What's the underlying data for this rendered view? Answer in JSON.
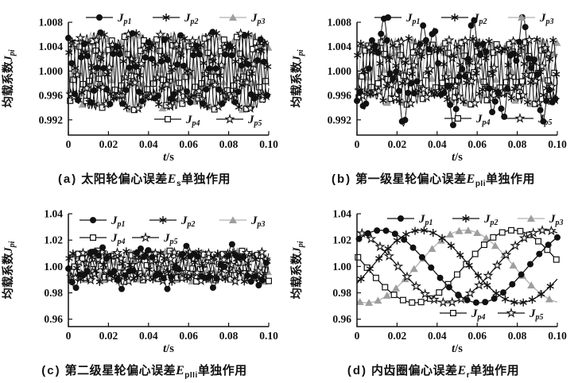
{
  "page": {
    "background": "#ffffff",
    "text_color": "#111111",
    "accent_gray": "#9e9e9e"
  },
  "chart_data": [
    {
      "id": "a",
      "type": "line",
      "caption": {
        "prefix": "(a)",
        "text": "太阳轮偏心误差",
        "var": "E",
        "sub": "s",
        "suffix": "单独作用"
      },
      "xlabel": {
        "var": "t",
        "unit": "/s"
      },
      "ylabel": {
        "text": "均载系数",
        "var": "J",
        "sub": "pi"
      },
      "xlim": [
        0,
        0.1
      ],
      "ylim": [
        0.9895,
        1.008
      ],
      "xticks": [
        "0",
        "0.02",
        "0.04",
        "0.06",
        "0.08",
        "0.10"
      ],
      "xtick_values": [
        0,
        0.02,
        0.04,
        0.06,
        0.08,
        0.1
      ],
      "yticks": [
        "0.992",
        "0.996",
        "1.000",
        "1.004",
        "1.008"
      ],
      "ytick_values": [
        0.992,
        0.996,
        1.0,
        1.004,
        1.008
      ],
      "grid": false,
      "line_step": 0.0004,
      "line_width": 1.0,
      "legends": [
        {
          "x": 108,
          "y": 22,
          "gap": 84,
          "items": [
            0,
            1,
            2
          ]
        },
        {
          "x": 194,
          "y": 150,
          "gap": 78,
          "items": [
            3,
            4
          ]
        }
      ],
      "series": [
        {
          "name": "J",
          "sub": "p1",
          "marker": "circle",
          "color": "#111111",
          "line_color": "#111111",
          "zorder": 5,
          "mean": 1,
          "approx_range": [
            0.9936,
            1.0064
          ],
          "components": [
            {
              "amp": 0.0052,
              "period": 0.008,
              "phase_deg": 90
            },
            {
              "amp": 0.0012,
              "period": 0.0031,
              "phase_deg": 10
            }
          ],
          "marker_interval": 0.0016,
          "marker_offset": 0.0
        },
        {
          "name": "J",
          "sub": "p2",
          "marker": "asterisk",
          "color": "#111111",
          "line_color": "#111111",
          "zorder": 4,
          "mean": 1,
          "approx_range": [
            0.9936,
            1.0064
          ],
          "components": [
            {
              "amp": 0.0052,
              "period": 0.008,
              "phase_deg": 18
            },
            {
              "amp": 0.0012,
              "period": 0.0031,
              "phase_deg": 130
            }
          ],
          "marker_interval": 0.0016,
          "marker_offset": 0.0003
        },
        {
          "name": "J",
          "sub": "p3",
          "marker": "triangle",
          "color": "#9e9e9e",
          "line_color": "#b0b0b0",
          "zorder": 1,
          "mean": 1,
          "approx_range": [
            0.9936,
            1.0064
          ],
          "components": [
            {
              "amp": 0.0052,
              "period": 0.008,
              "phase_deg": -54
            },
            {
              "amp": 0.0012,
              "period": 0.0031,
              "phase_deg": 250
            }
          ],
          "marker_interval": 0.0016,
          "marker_offset": 0.0006
        },
        {
          "name": "J",
          "sub": "p4",
          "marker": "square",
          "color": "#111111",
          "line_color": "#111111",
          "zorder": 2,
          "mean": 1,
          "approx_range": [
            0.9936,
            1.0064
          ],
          "components": [
            {
              "amp": 0.0052,
              "period": 0.008,
              "phase_deg": -126
            },
            {
              "amp": 0.0012,
              "period": 0.0031,
              "phase_deg": 60
            }
          ],
          "marker_interval": 0.0016,
          "marker_offset": 0.0009
        },
        {
          "name": "J",
          "sub": "p5",
          "marker": "star",
          "color": "#111111",
          "line_color": "#111111",
          "zorder": 3,
          "mean": 1,
          "approx_range": [
            0.9936,
            1.0064
          ],
          "components": [
            {
              "amp": 0.0052,
              "period": 0.008,
              "phase_deg": -198
            },
            {
              "amp": 0.0012,
              "period": 0.0031,
              "phase_deg": 180
            }
          ],
          "marker_interval": 0.0016,
          "marker_offset": 0.0012
        }
      ]
    },
    {
      "id": "b",
      "type": "line",
      "caption": {
        "prefix": "(b)",
        "text": "第一级星轮偏心误差",
        "var": "E",
        "sub": "pIi",
        "suffix": "单独作用"
      },
      "xlabel": {
        "var": "t",
        "unit": "/s"
      },
      "ylabel": {
        "text": "均载系数",
        "var": "J",
        "sub": "pi"
      },
      "xlim": [
        0,
        0.1
      ],
      "ylim": [
        0.9895,
        1.008
      ],
      "xticks": [
        "0",
        "0.02",
        "0.04",
        "0.06",
        "0.08",
        "0.10"
      ],
      "xtick_values": [
        0,
        0.02,
        0.04,
        0.06,
        0.08,
        0.1
      ],
      "yticks": [
        "0.992",
        "0.996",
        "1.000",
        "1.004",
        "1.008"
      ],
      "ytick_values": [
        0.992,
        0.996,
        1.0,
        1.004,
        1.008
      ],
      "grid": false,
      "line_step": 0.0004,
      "line_width": 1.0,
      "legends": [
        {
          "x": 108,
          "y": 22,
          "gap": 84,
          "items": [
            0,
            1,
            2
          ]
        },
        {
          "x": 196,
          "y": 149,
          "gap": 78,
          "items": [
            3,
            4
          ]
        }
      ],
      "series": [
        {
          "name": "J",
          "sub": "p1",
          "marker": "circle",
          "color": "#111111",
          "line_color": "#111111",
          "zorder": 5,
          "mean": 1,
          "approx_range": [
            0.991,
            1.009
          ],
          "components": [
            {
              "amp": 0.0063,
              "period": 0.0235,
              "phase_deg": -94
            },
            {
              "amp": 0.0028,
              "period": 0.0063,
              "phase_deg": 30
            }
          ],
          "marker_interval": 0.0015,
          "marker_offset": 0.0
        },
        {
          "name": "J",
          "sub": "p2",
          "marker": "asterisk",
          "color": "#111111",
          "line_color": "#111111",
          "zorder": 4,
          "mean": 1,
          "approx_range": [
            0.9945,
            1.0055
          ],
          "components": [
            {
              "amp": 0.0045,
              "period": 0.008,
              "phase_deg": 18
            },
            {
              "amp": 0.001,
              "period": 0.0029,
              "phase_deg": 130
            }
          ],
          "marker_interval": 0.0016,
          "marker_offset": 0.0003
        },
        {
          "name": "J",
          "sub": "p3",
          "marker": "triangle",
          "color": "#9e9e9e",
          "line_color": "#b0b0b0",
          "zorder": 1,
          "mean": 1,
          "approx_range": [
            0.9945,
            1.0055
          ],
          "components": [
            {
              "amp": 0.0045,
              "period": 0.008,
              "phase_deg": -54
            },
            {
              "amp": 0.001,
              "period": 0.0029,
              "phase_deg": 250
            }
          ],
          "marker_interval": 0.0016,
          "marker_offset": 0.0006
        },
        {
          "name": "J",
          "sub": "p4",
          "marker": "square",
          "color": "#111111",
          "line_color": "#111111",
          "zorder": 2,
          "mean": 1,
          "approx_range": [
            0.9945,
            1.0055
          ],
          "components": [
            {
              "amp": 0.0045,
              "period": 0.008,
              "phase_deg": -126
            },
            {
              "amp": 0.001,
              "period": 0.0029,
              "phase_deg": 60
            }
          ],
          "marker_interval": 0.0016,
          "marker_offset": 0.0009
        },
        {
          "name": "J",
          "sub": "p5",
          "marker": "star",
          "color": "#111111",
          "line_color": "#111111",
          "zorder": 3,
          "mean": 1,
          "approx_range": [
            0.9945,
            1.0055
          ],
          "components": [
            {
              "amp": 0.0045,
              "period": 0.008,
              "phase_deg": -198
            },
            {
              "amp": 0.001,
              "period": 0.0029,
              "phase_deg": 180
            }
          ],
          "marker_interval": 0.0016,
          "marker_offset": 0.0012
        }
      ]
    },
    {
      "id": "c",
      "type": "line",
      "caption": {
        "prefix": "(c)",
        "text": "第二级星轮偏心误差",
        "var": "E",
        "sub": "pIIi",
        "suffix": "单独作用"
      },
      "xlabel": {
        "var": "t",
        "unit": "/s"
      },
      "ylabel": {
        "text": "均载系数",
        "var": "J",
        "sub": "pi"
      },
      "xlim": [
        0,
        0.1
      ],
      "ylim": [
        0.9544,
        1.04
      ],
      "xticks": [
        "0",
        "0.02",
        "0.04",
        "0.06",
        "0.08",
        "0.10"
      ],
      "xtick_values": [
        0,
        0.02,
        0.04,
        0.06,
        0.08,
        0.1
      ],
      "yticks": [
        "0.96",
        "0.98",
        "1.00",
        "1.02",
        "1.04"
      ],
      "ytick_values": [
        0.96,
        0.98,
        1.0,
        1.02,
        1.04
      ],
      "grid": false,
      "line_step": 0.0004,
      "line_width": 1.0,
      "legends": [
        {
          "x": 100,
          "y": 36,
          "gap": 88,
          "items": [
            0,
            1,
            2
          ]
        },
        {
          "x": 100,
          "y": 58,
          "gap": 66,
          "items": [
            3,
            4
          ]
        }
      ],
      "series": [
        {
          "name": "J",
          "sub": "p1",
          "marker": "circle",
          "color": "#111111",
          "line_color": "#111111",
          "zorder": 5,
          "mean": 1,
          "approx_range": [
            0.983,
            1.018
          ],
          "components": [
            {
              "amp": 0.0125,
              "period": 0.0225,
              "phase_deg": -150
            },
            {
              "amp": 0.0048,
              "period": 0.0058,
              "phase_deg": 75
            }
          ],
          "marker_interval": 0.0019,
          "marker_offset": 0.0
        },
        {
          "name": "J",
          "sub": "p2",
          "marker": "asterisk",
          "color": "#111111",
          "line_color": "#111111",
          "zorder": 4,
          "mean": 1,
          "approx_range": [
            0.988,
            1.012
          ],
          "components": [
            {
              "amp": 0.0105,
              "period": 0.009,
              "phase_deg": 18
            },
            {
              "amp": 0.0015,
              "period": 0.0036,
              "phase_deg": 130
            }
          ],
          "marker_interval": 0.0019,
          "marker_offset": 0.0004
        },
        {
          "name": "J",
          "sub": "p3",
          "marker": "triangle",
          "color": "#9e9e9e",
          "line_color": "#b0b0b0",
          "zorder": 1,
          "mean": 1,
          "approx_range": [
            0.988,
            1.012
          ],
          "components": [
            {
              "amp": 0.0105,
              "period": 0.009,
              "phase_deg": -54
            },
            {
              "amp": 0.0015,
              "period": 0.0036,
              "phase_deg": 250
            }
          ],
          "marker_interval": 0.0019,
          "marker_offset": 0.0008
        },
        {
          "name": "J",
          "sub": "p4",
          "marker": "square",
          "color": "#111111",
          "line_color": "#111111",
          "zorder": 2,
          "mean": 1,
          "approx_range": [
            0.988,
            1.012
          ],
          "components": [
            {
              "amp": 0.0105,
              "period": 0.009,
              "phase_deg": -126
            },
            {
              "amp": 0.0015,
              "period": 0.0036,
              "phase_deg": 60
            }
          ],
          "marker_interval": 0.0019,
          "marker_offset": 0.0012
        },
        {
          "name": "J",
          "sub": "p5",
          "marker": "star",
          "color": "#111111",
          "line_color": "#111111",
          "zorder": 3,
          "mean": 1,
          "approx_range": [
            0.988,
            1.012
          ],
          "components": [
            {
              "amp": 0.0105,
              "period": 0.009,
              "phase_deg": -198
            },
            {
              "amp": 0.0015,
              "period": 0.0036,
              "phase_deg": 180
            }
          ],
          "marker_interval": 0.0019,
          "marker_offset": 0.0016
        }
      ]
    },
    {
      "id": "d",
      "type": "line",
      "caption": {
        "prefix": "(d)",
        "text": "内齿圈偏心误差",
        "var": "E",
        "sub": "r",
        "suffix": "单独作用"
      },
      "xlabel": {
        "var": "t",
        "unit": "/s"
      },
      "ylabel": {
        "text": "均载系数",
        "var": "J",
        "sub": "pi"
      },
      "xlim": [
        0,
        0.1
      ],
      "ylim": [
        0.9544,
        1.04
      ],
      "xticks": [
        "0",
        "0.02",
        "0.04",
        "0.06",
        "0.08",
        "0.10"
      ],
      "xtick_values": [
        0,
        0.02,
        0.04,
        0.06,
        0.08,
        0.1
      ],
      "yticks": [
        "0.96",
        "0.98",
        "1.00",
        "1.02",
        "1.04"
      ],
      "ytick_values": [
        0.96,
        0.98,
        1.0,
        1.02,
        1.04
      ],
      "grid": false,
      "line_step": 0.001,
      "line_width": 1.3,
      "legends": [
        {
          "x": 124,
          "y": 34,
          "gap": 82,
          "items": [
            0,
            1,
            2
          ]
        },
        {
          "x": 190,
          "y": 153,
          "gap": 73,
          "items": [
            3,
            4
          ]
        }
      ],
      "series": [
        {
          "name": "J",
          "sub": "p1",
          "marker": "circle",
          "color": "#111111",
          "line_color": "#111111",
          "zorder": 5,
          "mean": 1,
          "approx_range": [
            0.9725,
            1.0275
          ],
          "peak_t": 0.012,
          "components": [
            {
              "amp": 0.0275,
              "period": 0.098,
              "phase_deg": 45.9
            }
          ],
          "marker_interval": 0.0045,
          "marker_offset": 0.001
        },
        {
          "name": "J",
          "sub": "p2",
          "marker": "asterisk",
          "color": "#111111",
          "line_color": "#111111",
          "zorder": 4,
          "mean": 1,
          "approx_range": [
            0.9725,
            1.0275
          ],
          "peak_t": 0.032,
          "components": [
            {
              "amp": 0.0275,
              "period": 0.098,
              "phase_deg": -27.6
            }
          ],
          "marker_interval": 0.0045,
          "marker_offset": 0.002
        },
        {
          "name": "J",
          "sub": "p3",
          "marker": "triangle",
          "color": "#9e9e9e",
          "line_color": "#b0b0b0",
          "zorder": 1,
          "mean": 1,
          "approx_range": [
            0.9725,
            1.0275
          ],
          "peak_t": 0.054,
          "components": [
            {
              "amp": 0.0275,
              "period": 0.098,
              "phase_deg": -108.4
            }
          ],
          "marker_interval": 0.0045,
          "marker_offset": 0.0015
        },
        {
          "name": "J",
          "sub": "p4",
          "marker": "square",
          "color": "#111111",
          "line_color": "#111111",
          "zorder": 2,
          "mean": 1,
          "approx_range": [
            0.9725,
            1.0275
          ],
          "peak_t": 0.078,
          "components": [
            {
              "amp": 0.0275,
              "period": 0.098,
              "phase_deg": -196.5
            }
          ],
          "marker_interval": 0.0045,
          "marker_offset": 0.0005
        },
        {
          "name": "J",
          "sub": "p5",
          "marker": "star",
          "color": "#111111",
          "line_color": "#111111",
          "zorder": 3,
          "mean": 1,
          "approx_range": [
            0.9725,
            1.0275
          ],
          "peak_t": 0.094,
          "components": [
            {
              "amp": 0.0275,
              "period": 0.098,
              "phase_deg": -255.3
            }
          ],
          "marker_interval": 0.0045,
          "marker_offset": 0.0025
        }
      ]
    }
  ]
}
